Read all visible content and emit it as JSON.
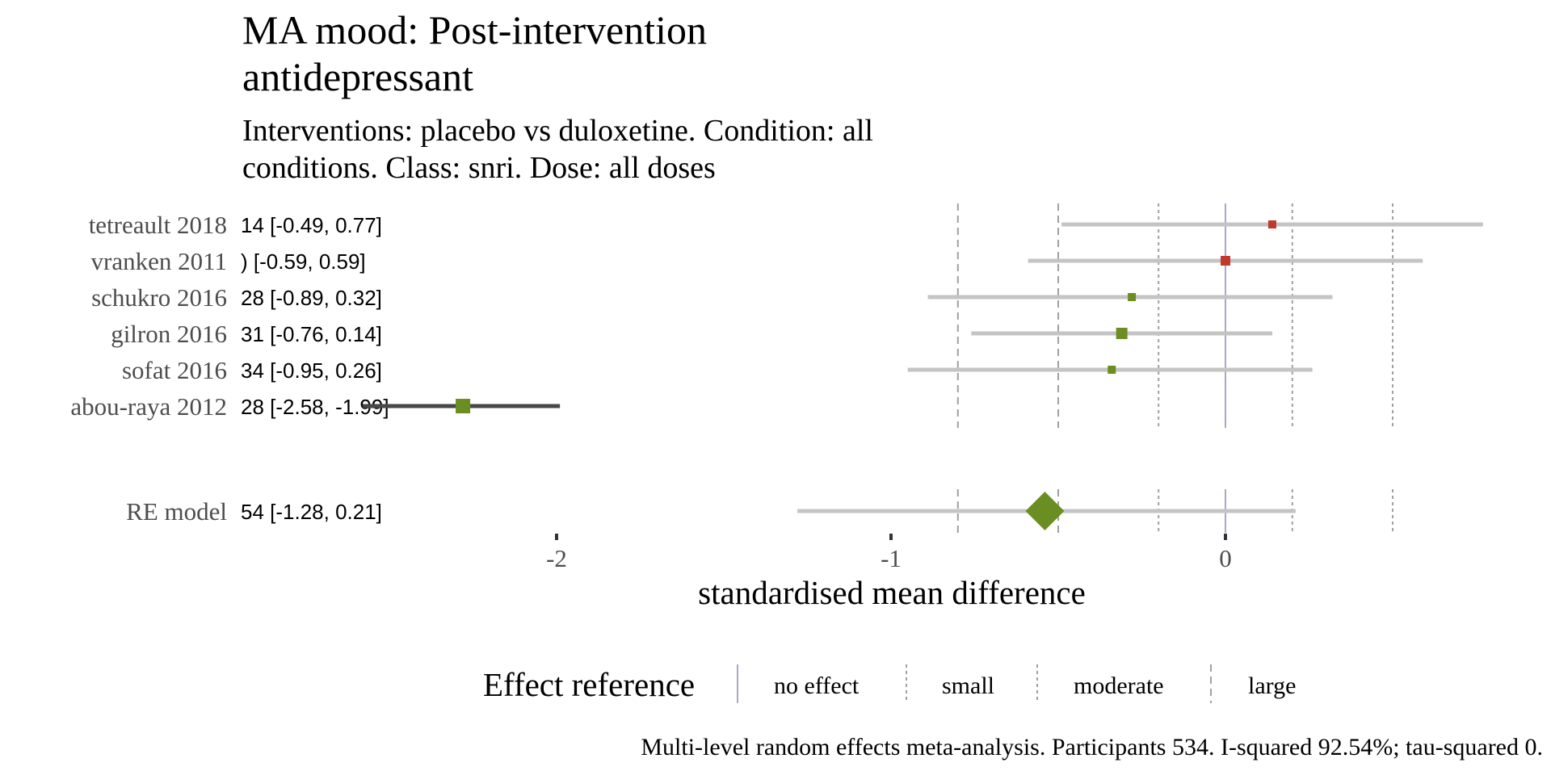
{
  "chart_data": {
    "type": "forest",
    "title_lines": [
      "MA mood: Post-intervention",
      "antidepressant"
    ],
    "subtitle_lines": [
      "Interventions: placebo vs duloxetine. Condition: all",
      "conditions. Class: snri. Dose: all doses"
    ],
    "xlabel": "standardised mean difference",
    "x_ticks": [
      -2,
      -1,
      0
    ],
    "x_tick_labels": [
      "-2",
      "-1",
      "0"
    ],
    "xlim": [
      -3.0,
      0.95
    ],
    "reference_lines": [
      {
        "x": -0.8,
        "style": "dashed"
      },
      {
        "x": -0.5,
        "style": "dashed"
      },
      {
        "x": -0.2,
        "style": "dotted"
      },
      {
        "x": 0,
        "style": "solid"
      },
      {
        "x": 0.2,
        "style": "dotted"
      },
      {
        "x": 0.5,
        "style": "dotted"
      }
    ],
    "studies": [
      {
        "label": "tetreault 2018",
        "ci_text": "14 [-0.49, 0.77]",
        "estimate": 0.14,
        "lower": -0.49,
        "upper": 0.77,
        "color": "#c0392b",
        "weight": "small",
        "clipped": false
      },
      {
        "label": "vranken 2011",
        "ci_text": ") [-0.59, 0.59]",
        "estimate": 0.0,
        "lower": -0.59,
        "upper": 0.59,
        "color": "#c0392b",
        "weight": "medium",
        "clipped": false
      },
      {
        "label": "schukro 2016",
        "ci_text": "28 [-0.89, 0.32]",
        "estimate": -0.28,
        "lower": -0.89,
        "upper": 0.32,
        "color": "#6b8e23",
        "weight": "small",
        "clipped": false
      },
      {
        "label": "gilron 2016",
        "ci_text": "31 [-0.76, 0.14]",
        "estimate": -0.31,
        "lower": -0.76,
        "upper": 0.14,
        "color": "#6b8e23",
        "weight": "large",
        "clipped": false
      },
      {
        "label": "sofat 2016",
        "ci_text": "34 [-0.95, 0.26]",
        "estimate": -0.34,
        "lower": -0.95,
        "upper": 0.26,
        "color": "#6b8e23",
        "weight": "small",
        "clipped": false
      },
      {
        "label": "abou-raya 2012",
        "ci_text": "28 [-2.58, -1.99]",
        "estimate": -2.28,
        "lower": -2.58,
        "upper": -1.99,
        "color": "#6b8e23",
        "weight": "xlarge",
        "clipped": true
      }
    ],
    "summary": {
      "label": "RE model",
      "ci_text": "54 [-1.28, 0.21]",
      "estimate": -0.54,
      "lower": -1.28,
      "upper": 0.21,
      "color": "#6b8e23"
    },
    "legend": {
      "title": "Effect reference",
      "items": [
        {
          "label": "no effect",
          "style": "solid"
        },
        {
          "label": "small",
          "style": "dotted"
        },
        {
          "label": "moderate",
          "style": "dotted"
        },
        {
          "label": "large",
          "style": "dashed"
        }
      ]
    },
    "caption": "Multi-level random effects meta-analysis. Participants 534. I-squared 92.54%; tau-squared 0."
  }
}
